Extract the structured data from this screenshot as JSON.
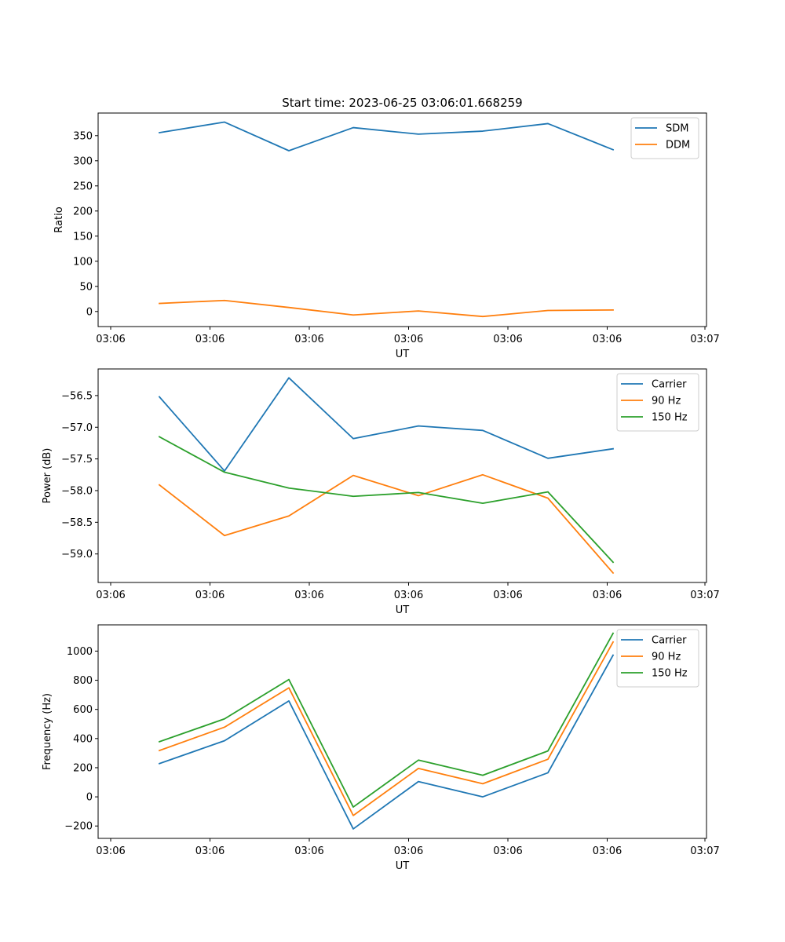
{
  "chart_data": [
    {
      "type": "line",
      "title": "Start time: 2023-06-25 03:06:01.668259",
      "xlabel": "UT",
      "ylabel": "Ratio",
      "x_tick_labels": [
        "03:06",
        "03:06",
        "03:06",
        "03:06",
        "03:06",
        "03:06",
        "03:07"
      ],
      "y_ticks": [
        0,
        50,
        100,
        150,
        200,
        250,
        300,
        350
      ],
      "y_tick_labels": [
        "0",
        "50",
        "100",
        "150",
        "200",
        "250",
        "300",
        "350"
      ],
      "ylim": [
        -30,
        395
      ],
      "legend_position": "upper-right",
      "series": [
        {
          "name": "SDM",
          "color": "#1f77b4",
          "values": [
            356,
            377,
            320,
            366,
            353,
            359,
            374,
            322
          ]
        },
        {
          "name": "DDM",
          "color": "#ff7f0e",
          "values": [
            16,
            22,
            8,
            -7,
            1,
            -10,
            2,
            3
          ]
        }
      ]
    },
    {
      "type": "line",
      "title": "",
      "xlabel": "UT",
      "ylabel": "Power (dB)",
      "x_tick_labels": [
        "03:06",
        "03:06",
        "03:06",
        "03:06",
        "03:06",
        "03:06",
        "03:07"
      ],
      "y_ticks": [
        -59.0,
        -58.5,
        -58.0,
        -57.5,
        -57.0,
        -56.5
      ],
      "y_tick_labels": [
        "−59.0",
        "−58.5",
        "−58.0",
        "−57.5",
        "−57.0",
        "−56.5"
      ],
      "ylim": [
        -59.45,
        -56.08
      ],
      "legend_position": "upper-right",
      "series": [
        {
          "name": "Carrier",
          "color": "#1f77b4",
          "values": [
            -56.52,
            -57.69,
            -56.22,
            -57.18,
            -56.98,
            -57.05,
            -57.49,
            -57.34
          ]
        },
        {
          "name": "90 Hz",
          "color": "#ff7f0e",
          "values": [
            -57.91,
            -58.71,
            -58.4,
            -57.76,
            -58.08,
            -57.75,
            -58.12,
            -59.3
          ]
        },
        {
          "name": "150 Hz",
          "color": "#2ca02c",
          "values": [
            -57.15,
            -57.71,
            -57.96,
            -58.09,
            -58.03,
            -58.2,
            -58.02,
            -59.13
          ]
        }
      ]
    },
    {
      "type": "line",
      "title": "",
      "xlabel": "UT",
      "ylabel": "Frequency (Hz)",
      "x_tick_labels": [
        "03:06",
        "03:06",
        "03:06",
        "03:06",
        "03:06",
        "03:06",
        "03:07"
      ],
      "y_ticks": [
        -200,
        0,
        200,
        400,
        600,
        800,
        1000
      ],
      "y_tick_labels": [
        "−200",
        "0",
        "200",
        "400",
        "600",
        "800",
        "1000"
      ],
      "ylim": [
        -285,
        1180
      ],
      "legend_position": "upper-right",
      "series": [
        {
          "name": "Carrier",
          "color": "#1f77b4",
          "values": [
            228,
            385,
            658,
            -220,
            105,
            0,
            165,
            972
          ]
        },
        {
          "name": "90 Hz",
          "color": "#ff7f0e",
          "values": [
            318,
            478,
            748,
            -128,
            195,
            90,
            258,
            1062
          ]
        },
        {
          "name": "150 Hz",
          "color": "#2ca02c",
          "values": [
            378,
            535,
            805,
            -70,
            252,
            148,
            315,
            1122
          ]
        }
      ]
    }
  ]
}
